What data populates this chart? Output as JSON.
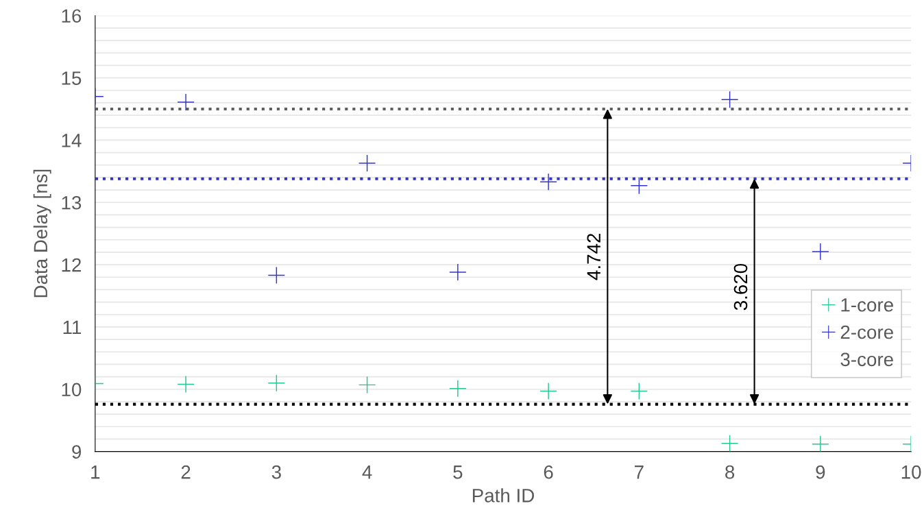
{
  "chart_data": {
    "type": "scatter",
    "xlabel": "Path ID",
    "ylabel": "Data Delay [ns]",
    "x": [
      1,
      2,
      3,
      4,
      5,
      6,
      7,
      8,
      9,
      10
    ],
    "series": [
      {
        "name": "1-core",
        "color": "#1fc98f",
        "values": [
          10.09,
          10.08,
          10.1,
          10.07,
          10.01,
          9.97,
          9.97,
          9.13,
          9.12,
          9.12
        ]
      },
      {
        "name": "2-core",
        "color": "#3333cc",
        "values": [
          14.7,
          14.61,
          11.83,
          13.63,
          11.88,
          13.33,
          13.27,
          14.65,
          12.21,
          13.63
        ]
      },
      {
        "name": "3-core",
        "values": [
          null,
          null,
          null,
          null,
          null,
          null,
          null,
          null,
          null,
          null
        ]
      }
    ],
    "marker": "cross",
    "xlim": [
      1,
      10
    ],
    "xticks": [
      1,
      2,
      3,
      4,
      5,
      6,
      7,
      8,
      9,
      10
    ],
    "ylim": [
      9,
      16
    ],
    "yticks": [
      9,
      {
        "value": 9.2,
        "label": null
      },
      {
        "value": 9.4,
        "label": null
      },
      {
        "value": 9.6,
        "label": null
      },
      {
        "value": 9.8,
        "label": null
      },
      10,
      {
        "value": 10.2,
        "label": null
      },
      {
        "value": 10.4,
        "label": null
      },
      {
        "value": 10.6,
        "label": null
      },
      {
        "value": 10.8,
        "label": null
      },
      11,
      {
        "value": 11.2,
        "label": null
      },
      {
        "value": 11.4,
        "label": null
      },
      {
        "value": 11.6,
        "label": null
      },
      {
        "value": 11.8,
        "label": null
      },
      12,
      {
        "value": 12.2,
        "label": null
      },
      {
        "value": 12.4,
        "label": null
      },
      {
        "value": 12.6,
        "label": null
      },
      {
        "value": 12.8,
        "label": null
      },
      13,
      {
        "value": 13.2,
        "label": null
      },
      {
        "value": 13.4,
        "label": null
      },
      {
        "value": 13.6,
        "label": null
      },
      {
        "value": 13.8,
        "label": null
      },
      14,
      {
        "value": 14.2,
        "label": null
      },
      {
        "value": 14.4,
        "label": null
      },
      {
        "value": 14.6,
        "label": null
      },
      {
        "value": 14.8,
        "label": null
      },
      15,
      {
        "value": 15.2,
        "label": null
      },
      {
        "value": 15.4,
        "label": null
      },
      {
        "value": 15.6,
        "label": null
      },
      {
        "value": 15.8,
        "label": null
      },
      16
    ],
    "grid": "y",
    "legend": "right",
    "ref_lines": [
      {
        "axis": "y",
        "value": 14.5,
        "color": "#606060",
        "line_style": "dotted"
      },
      {
        "axis": "y",
        "value": 13.38,
        "color": "#3333cc",
        "line_style": "dotted"
      },
      {
        "axis": "y",
        "value": 9.76,
        "color": "#000000",
        "line_style": "dotted"
      }
    ],
    "annotations": [
      "4.742",
      "3.620"
    ]
  }
}
